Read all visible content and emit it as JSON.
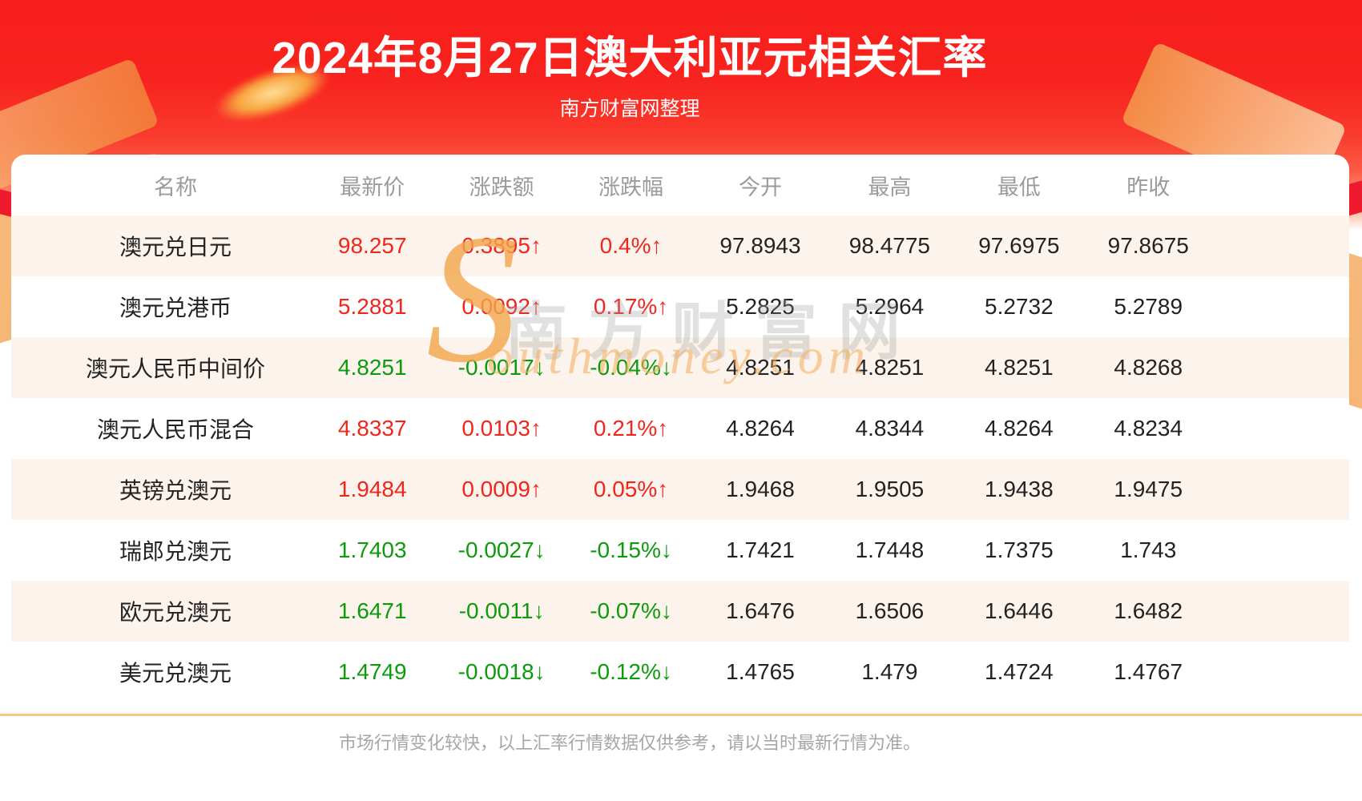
{
  "page": {
    "title": "2024年8月27日澳大利亚元相关汇率",
    "subtitle": "南方财富网整理",
    "footer_note": "市场行情变化较快，以上汇率行情数据仅供参考，请以当时最新行情为准。"
  },
  "watermark": {
    "cn": "南方财富网",
    "en_initial": "S",
    "en_rest": "outhmoney.com"
  },
  "colors": {
    "up": "#f0261d",
    "down": "#0b9b0b",
    "banner_red": "#f8231e",
    "row_alt_bg": "#fcf3ec",
    "header_text": "#9b9b9b",
    "divider_orange": "#f7c78e"
  },
  "chart_data": {
    "type": "table",
    "title": "2024年8月27日澳大利亚元相关汇率",
    "columns": [
      "名称",
      "最新价",
      "涨跌额",
      "涨跌幅",
      "今开",
      "最高",
      "最低",
      "昨收"
    ],
    "rows": [
      {
        "name": "澳元兑日元",
        "last": "98.257",
        "change": "0.3895↑",
        "pct": "0.4%↑",
        "dir": "up",
        "open": "97.8943",
        "high": "98.4775",
        "low": "97.6975",
        "prev": "97.8675"
      },
      {
        "name": "澳元兑港币",
        "last": "5.2881",
        "change": "0.0092↑",
        "pct": "0.17%↑",
        "dir": "up",
        "open": "5.2825",
        "high": "5.2964",
        "low": "5.2732",
        "prev": "5.2789"
      },
      {
        "name": "澳元人民币中间价",
        "last": "4.8251",
        "change": "-0.0017↓",
        "pct": "-0.04%↓",
        "dir": "down",
        "open": "4.8251",
        "high": "4.8251",
        "low": "4.8251",
        "prev": "4.8268"
      },
      {
        "name": "澳元人民币混合",
        "last": "4.8337",
        "change": "0.0103↑",
        "pct": "0.21%↑",
        "dir": "up",
        "open": "4.8264",
        "high": "4.8344",
        "low": "4.8264",
        "prev": "4.8234"
      },
      {
        "name": "英镑兑澳元",
        "last": "1.9484",
        "change": "0.0009↑",
        "pct": "0.05%↑",
        "dir": "up",
        "open": "1.9468",
        "high": "1.9505",
        "low": "1.9438",
        "prev": "1.9475"
      },
      {
        "name": "瑞郎兑澳元",
        "last": "1.7403",
        "change": "-0.0027↓",
        "pct": "-0.15%↓",
        "dir": "down",
        "open": "1.7421",
        "high": "1.7448",
        "low": "1.7375",
        "prev": "1.743"
      },
      {
        "name": "欧元兑澳元",
        "last": "1.6471",
        "change": "-0.0011↓",
        "pct": "-0.07%↓",
        "dir": "down",
        "open": "1.6476",
        "high": "1.6506",
        "low": "1.6446",
        "prev": "1.6482"
      },
      {
        "name": "美元兑澳元",
        "last": "1.4749",
        "change": "-0.0018↓",
        "pct": "-0.12%↓",
        "dir": "down",
        "open": "1.4765",
        "high": "1.479",
        "low": "1.4724",
        "prev": "1.4767"
      }
    ]
  }
}
